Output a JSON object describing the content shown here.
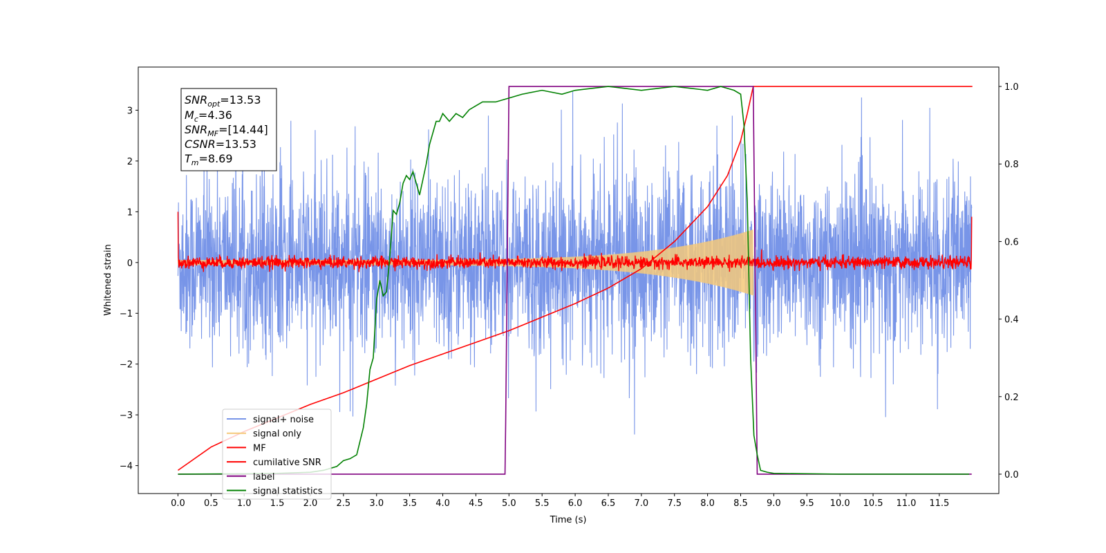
{
  "chart_data": {
    "type": "line",
    "xlabel": "Time (s)",
    "ylabel": "Whitened strain",
    "xlim": [
      -0.6,
      12.4
    ],
    "ylim": [
      -4.55,
      3.85
    ],
    "ylim_right": [
      -0.05,
      1.05
    ],
    "x_ticks": [
      "0.0",
      "0.5",
      "1.0",
      "1.5",
      "2.0",
      "2.5",
      "3.0",
      "3.5",
      "4.0",
      "4.5",
      "5.0",
      "5.5",
      "6.0",
      "6.5",
      "7.0",
      "7.5",
      "8.0",
      "8.5",
      "9.0",
      "9.5",
      "10.0",
      "10.5",
      "11.0",
      "11.5"
    ],
    "y_ticks": [
      "−4",
      "−3",
      "−2",
      "−1",
      "0",
      "1",
      "2",
      "3"
    ],
    "y_ticks_right": [
      "0.0",
      "0.2",
      "0.4",
      "0.6",
      "0.8",
      "1.0"
    ],
    "legend_location": "lower-left",
    "annotation": {
      "snr_opt": {
        "name": "SNR",
        "sub": "opt",
        "value": "=13.53"
      },
      "mc": {
        "name": "M",
        "sub": "c",
        "value": "=4.36"
      },
      "snr_mf": {
        "name": "SNR",
        "sub": "MF",
        "value": "=[14.44]"
      },
      "csnr": {
        "name": "CSNR",
        "sub": "",
        "value": "=13.53"
      },
      "tm": {
        "name": "T",
        "sub": "m",
        "value": "=8.69"
      }
    },
    "series": [
      {
        "name": "signal+ noise",
        "color": "#7895e8",
        "axis": "left",
        "noise_std": 0.85,
        "x_range": [
          0.0,
          11.99
        ]
      },
      {
        "name": "signal only",
        "color": "#f5c97a",
        "axis": "left",
        "chirp_start": 0.0,
        "chirp_end": 8.69,
        "start_amplitude": 0.05,
        "end_amplitude": 0.65
      },
      {
        "name": "MF",
        "color": "#ff0000",
        "axis": "left",
        "noise_std": 0.06,
        "x_range": [
          0.0,
          11.99
        ]
      },
      {
        "name": "cumilative SNR",
        "color": "#ff0000",
        "axis": "right",
        "x": [
          0.0,
          0.5,
          1.0,
          1.5,
          2.0,
          2.5,
          3.0,
          3.5,
          4.0,
          4.5,
          5.0,
          5.5,
          6.0,
          6.5,
          7.0,
          7.5,
          8.0,
          8.3,
          8.5,
          8.6,
          8.69,
          12.0
        ],
        "y": [
          0.01,
          0.07,
          0.11,
          0.145,
          0.18,
          0.21,
          0.245,
          0.28,
          0.31,
          0.34,
          0.37,
          0.405,
          0.44,
          0.48,
          0.53,
          0.6,
          0.69,
          0.77,
          0.86,
          0.93,
          1.0,
          1.0
        ]
      },
      {
        "name": "label",
        "color": "#800080",
        "axis": "right",
        "x": [
          0.0,
          4.94,
          4.95,
          5.0,
          8.69,
          8.75,
          11.99
        ],
        "y": [
          0.0,
          0.0,
          0.13,
          1.0,
          1.0,
          0.0,
          0.0
        ]
      },
      {
        "name": "signal statistics",
        "color": "#008000",
        "axis": "right",
        "x": [
          0.0,
          1.0,
          1.5,
          2.0,
          2.2,
          2.4,
          2.5,
          2.6,
          2.7,
          2.8,
          2.85,
          2.9,
          2.95,
          3.0,
          3.05,
          3.1,
          3.15,
          3.2,
          3.25,
          3.3,
          3.35,
          3.4,
          3.45,
          3.5,
          3.55,
          3.6,
          3.65,
          3.7,
          3.75,
          3.8,
          3.85,
          3.9,
          3.95,
          4.0,
          4.1,
          4.2,
          4.3,
          4.4,
          4.5,
          4.6,
          4.8,
          5.0,
          5.2,
          5.5,
          5.8,
          6.0,
          6.5,
          7.0,
          7.5,
          8.0,
          8.2,
          8.4,
          8.5,
          8.55,
          8.6,
          8.65,
          8.7,
          8.75,
          8.8,
          8.9,
          9.0,
          10.0,
          11.0,
          11.95
        ],
        "y": [
          0.0,
          0.001,
          0.002,
          0.005,
          0.01,
          0.02,
          0.035,
          0.04,
          0.05,
          0.12,
          0.18,
          0.27,
          0.3,
          0.45,
          0.5,
          0.46,
          0.47,
          0.56,
          0.68,
          0.67,
          0.7,
          0.75,
          0.77,
          0.76,
          0.78,
          0.75,
          0.72,
          0.76,
          0.8,
          0.85,
          0.88,
          0.91,
          0.91,
          0.93,
          0.91,
          0.93,
          0.92,
          0.94,
          0.95,
          0.96,
          0.96,
          0.97,
          0.98,
          0.99,
          0.98,
          0.99,
          1.0,
          0.99,
          1.0,
          0.99,
          1.0,
          0.99,
          0.98,
          0.9,
          0.7,
          0.3,
          0.1,
          0.05,
          0.01,
          0.005,
          0.002,
          0.0,
          0.0,
          0.0
        ]
      }
    ]
  }
}
